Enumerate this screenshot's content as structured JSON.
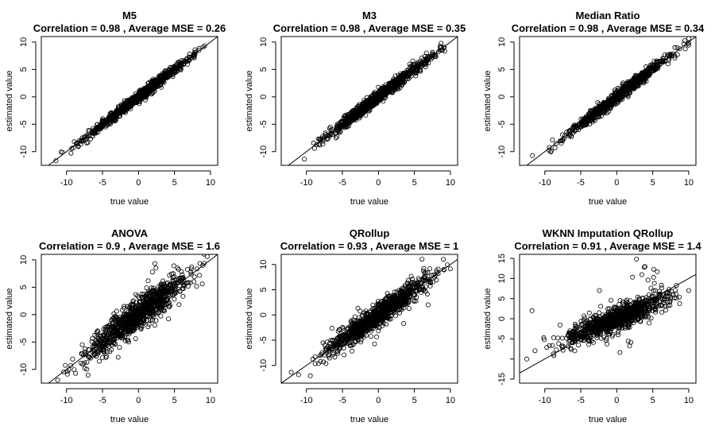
{
  "figure": {
    "xlabel": "true value",
    "ylabel": "estimated value"
  },
  "chart_data": [
    {
      "type": "scatter",
      "title": "M5",
      "subtitle": "Correlation =  0.98 , Average MSE =  0.26",
      "xlabel": "true value",
      "ylabel": "estimated value",
      "xlim": [
        -13.5,
        11
      ],
      "ylim": [
        -12.5,
        11
      ],
      "xticks": [
        -10,
        -5,
        0,
        5,
        10
      ],
      "yticks": [
        -10,
        -5,
        0,
        5,
        10
      ],
      "identity_line": true,
      "noise_sd": 0.45,
      "x_range": [
        -12.5,
        10
      ],
      "n_points": 900
    },
    {
      "type": "scatter",
      "title": "M3",
      "subtitle": "Correlation =  0.98 , Average MSE =  0.35",
      "xlabel": "true value",
      "ylabel": "estimated value",
      "xlim": [
        -13.5,
        11
      ],
      "ylim": [
        -12.5,
        11
      ],
      "xticks": [
        -10,
        -5,
        0,
        5,
        10
      ],
      "yticks": [
        -10,
        -5,
        0,
        5,
        10
      ],
      "identity_line": true,
      "noise_sd": 0.55,
      "x_range": [
        -12.5,
        10
      ],
      "n_points": 900
    },
    {
      "type": "scatter",
      "title": "Median Ratio",
      "subtitle": "Correlation =  0.98 , Average MSE =  0.34",
      "xlabel": "true value",
      "ylabel": "estimated value",
      "xlim": [
        -13.5,
        11
      ],
      "ylim": [
        -12.5,
        11
      ],
      "xticks": [
        -10,
        -5,
        0,
        5,
        10
      ],
      "yticks": [
        -10,
        -5,
        0,
        5,
        10
      ],
      "identity_line": true,
      "noise_sd": 0.55,
      "x_range": [
        -12.5,
        10
      ],
      "n_points": 900
    },
    {
      "type": "scatter",
      "title": "ANOVA",
      "subtitle": "Correlation =  0.9 , Average MSE =  1.6",
      "xlabel": "true value",
      "ylabel": "estimated value",
      "xlim": [
        -13.5,
        11
      ],
      "ylim": [
        -12.5,
        11
      ],
      "xticks": [
        -10,
        -5,
        0,
        5,
        10
      ],
      "yticks": [
        -10,
        -5,
        0,
        5,
        10
      ],
      "identity_line": true,
      "noise_sd": 1.35,
      "x_range": [
        -12.5,
        10
      ],
      "n_points": 1000
    },
    {
      "type": "scatter",
      "title": "QRollup",
      "subtitle": "Correlation =  0.93 , Average MSE =  1",
      "xlabel": "true value",
      "ylabel": "estimated value",
      "xlim": [
        -13.5,
        11
      ],
      "ylim": [
        -13.5,
        12
      ],
      "xticks": [
        -10,
        -5,
        0,
        5,
        10
      ],
      "yticks": [
        -10,
        -5,
        0,
        5,
        10
      ],
      "identity_line": true,
      "noise_sd": 1.1,
      "x_range": [
        -12.5,
        10
      ],
      "n_points": 1000
    },
    {
      "type": "scatter",
      "title": "WKNN Imputation QRollup",
      "subtitle": "Correlation =  0.91 , Average MSE =  1.4",
      "xlabel": "true value",
      "ylabel": "estimated value",
      "xlim": [
        -13.5,
        11
      ],
      "ylim": [
        -16,
        16
      ],
      "xticks": [
        -10,
        -5,
        0,
        5,
        10
      ],
      "yticks": [
        -15,
        -10,
        -5,
        0,
        5,
        10,
        15
      ],
      "ytick_labels": [
        "-15",
        "",
        "-5",
        "0",
        "5",
        "10",
        "15"
      ],
      "identity_line": true,
      "noise_sd": 1.3,
      "x_range": [
        -12.5,
        10
      ],
      "n_points": 1000
    }
  ]
}
